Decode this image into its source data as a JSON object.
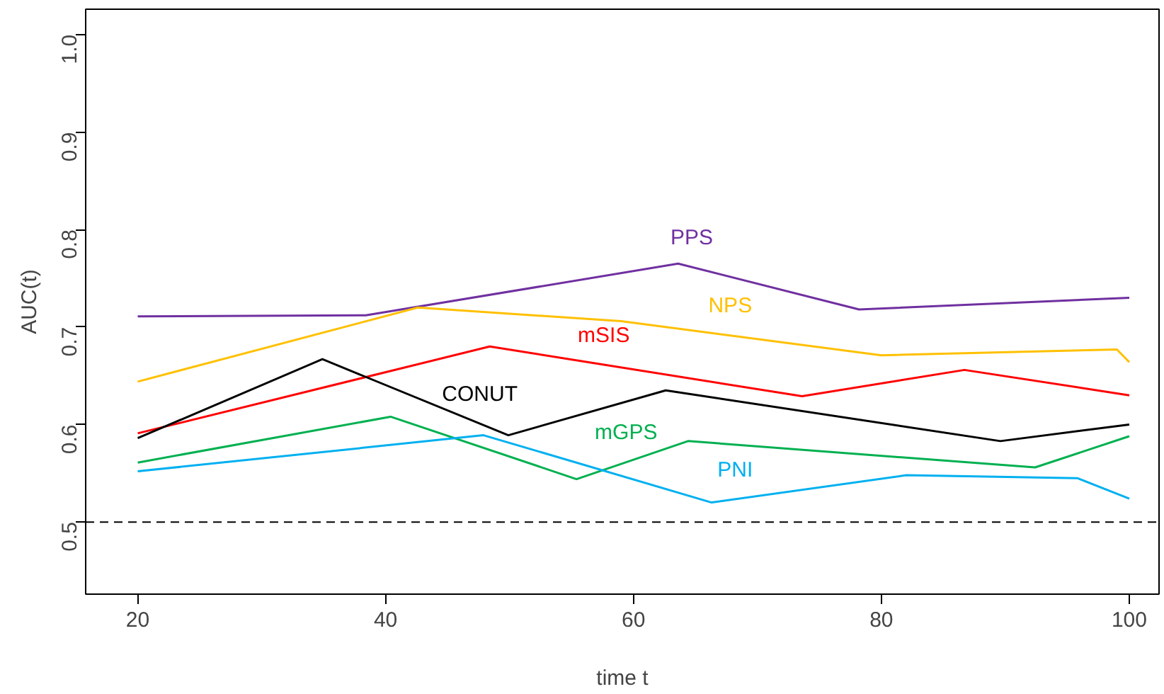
{
  "chart_data": {
    "type": "line",
    "xlabel": "time t",
    "ylabel": "AUC(t)",
    "xlim": [
      15.8,
      102.4
    ],
    "ylim": [
      0.426,
      1.026
    ],
    "xticks": [
      20,
      40,
      60,
      80,
      100
    ],
    "yticks": [
      {
        "value": 0.5,
        "label": "0.5"
      },
      {
        "value": 0.6,
        "label": "0.6"
      },
      {
        "value": 0.7,
        "label": "0.7"
      },
      {
        "value": 0.8,
        "label": "0.8"
      },
      {
        "value": 0.9,
        "label": "0.9"
      },
      {
        "value": 1.0,
        "label": "1.0"
      }
    ],
    "grid": false,
    "line_style": "solid",
    "marker": "none",
    "series": [
      {
        "name": "PPS",
        "color": "#7030a0",
        "x": [
          20,
          38.4,
          63.6,
          78.2,
          100
        ],
        "values": [
          0.711,
          0.712,
          0.765,
          0.718,
          0.73
        ]
      },
      {
        "name": "NPS",
        "color": "#ffc000",
        "x": [
          20,
          42.6,
          59,
          80,
          99,
          100
        ],
        "values": [
          0.644,
          0.72,
          0.706,
          0.671,
          0.677,
          0.664
        ]
      },
      {
        "name": "mSIS",
        "color": "#ff0000",
        "x": [
          20,
          48.4,
          73.6,
          86.7,
          100
        ],
        "values": [
          0.591,
          0.68,
          0.629,
          0.656,
          0.63
        ]
      },
      {
        "name": "CONUT",
        "color": "#000000",
        "x": [
          20,
          34.9,
          49.9,
          62.6,
          89.6,
          100
        ],
        "values": [
          0.586,
          0.667,
          0.589,
          0.635,
          0.583,
          0.6
        ]
      },
      {
        "name": "mGPS",
        "color": "#00b050",
        "x": [
          20,
          40.4,
          55.4,
          64.4,
          92.4,
          100
        ],
        "values": [
          0.561,
          0.608,
          0.544,
          0.583,
          0.556,
          0.588
        ]
      },
      {
        "name": "PNI",
        "color": "#00b0f0",
        "x": [
          20,
          47.9,
          66.3,
          82,
          95.8,
          100
        ],
        "values": [
          0.552,
          0.589,
          0.52,
          0.548,
          0.545,
          0.524
        ]
      }
    ],
    "ref_lines": [
      {
        "axis": "y",
        "value": 0.5,
        "color": "#000000",
        "line_style": "dashed"
      }
    ]
  }
}
